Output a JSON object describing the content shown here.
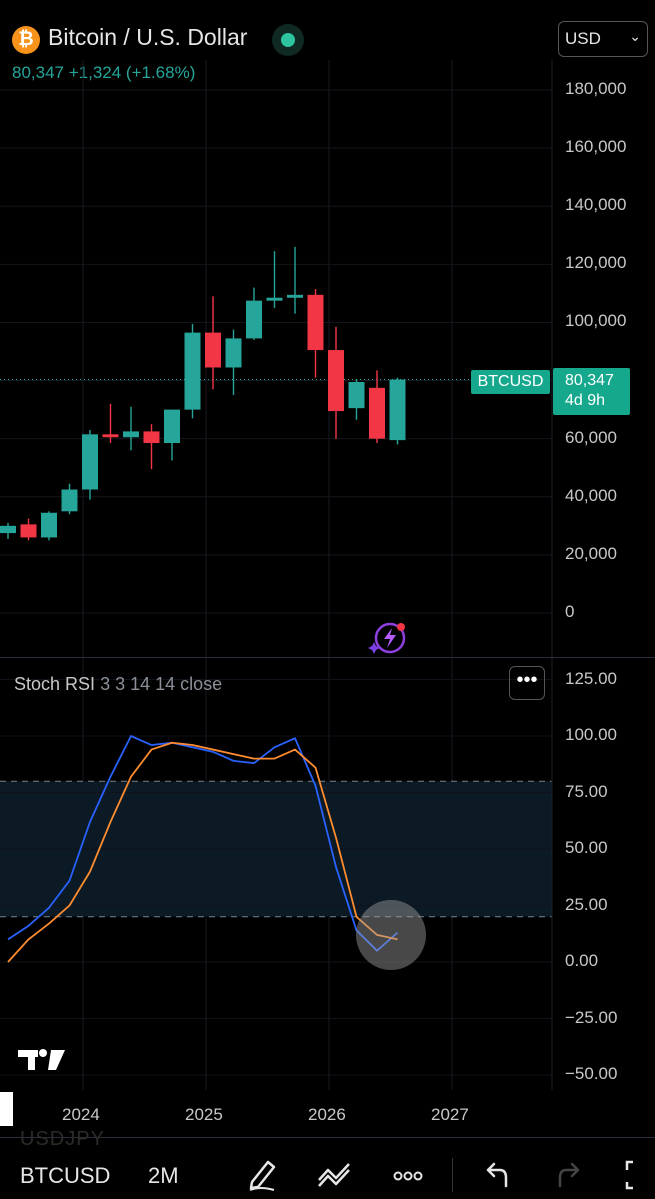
{
  "header": {
    "title": "Bitcoin / U.S. Dollar",
    "icon_glyph": "₿",
    "price_line": "80,347  +1,324 (+1.68%)",
    "currency": "USD",
    "accent": "#26a69a",
    "up_color": "#26a69a",
    "down_color": "#f23645"
  },
  "price_axis": {
    "ticks": [
      "180,000",
      "160,000",
      "140,000",
      "120,000",
      "100,000",
      "60,000",
      "40,000",
      "20,000",
      "0"
    ]
  },
  "price_tag": {
    "symbol": "BTCUSD",
    "price": "80,347",
    "countdown": "4d 9h"
  },
  "indicator": {
    "name": "Stoch RSI",
    "params": "3 3 14 14 close",
    "more_label": "•••",
    "ticks": [
      "125.00",
      "100.00",
      "75.00",
      "50.00",
      "25.00",
      "0.00",
      "−25.00",
      "−50.00"
    ]
  },
  "time_axis": {
    "years": [
      "2024",
      "2025",
      "2026",
      "2027"
    ]
  },
  "chart_data": {
    "type": "candlestick",
    "ylim": [
      0,
      190000
    ],
    "candles": [
      {
        "o": 27500,
        "h": 31000,
        "l": 25500,
        "c": 30000
      },
      {
        "o": 30500,
        "h": 32500,
        "l": 25000,
        "c": 26000
      },
      {
        "o": 26000,
        "h": 35000,
        "l": 25000,
        "c": 34500
      },
      {
        "o": 35000,
        "h": 44500,
        "l": 34000,
        "c": 42500
      },
      {
        "o": 42500,
        "h": 63000,
        "l": 39000,
        "c": 61500
      },
      {
        "o": 61500,
        "h": 72000,
        "l": 58500,
        "c": 60500
      },
      {
        "o": 60500,
        "h": 71000,
        "l": 56000,
        "c": 62500
      },
      {
        "o": 62500,
        "h": 65000,
        "l": 49500,
        "c": 58500
      },
      {
        "o": 58500,
        "h": 70000,
        "l": 52500,
        "c": 70000
      },
      {
        "o": 70000,
        "h": 99500,
        "l": 67000,
        "c": 96500
      },
      {
        "o": 96500,
        "h": 109000,
        "l": 77000,
        "c": 84500
      },
      {
        "o": 84500,
        "h": 97500,
        "l": 75000,
        "c": 94500
      },
      {
        "o": 94500,
        "h": 112000,
        "l": 94000,
        "c": 107500
      },
      {
        "o": 107500,
        "h": 124500,
        "l": 105000,
        "c": 108500
      },
      {
        "o": 108500,
        "h": 126000,
        "l": 103000,
        "c": 109500
      },
      {
        "o": 109500,
        "h": 111500,
        "l": 81000,
        "c": 90500
      },
      {
        "o": 90500,
        "h": 98500,
        "l": 60000,
        "c": 69500
      },
      {
        "o": 70500,
        "h": 80500,
        "l": 66500,
        "c": 79500
      },
      {
        "o": 77500,
        "h": 83500,
        "l": 58500,
        "c": 60000
      },
      {
        "o": 59500,
        "h": 81000,
        "l": 58000,
        "c": 80347
      }
    ],
    "stoch_rsi": {
      "ylim": [
        -60,
        130
      ],
      "levels": [
        80,
        50,
        20
      ],
      "series": [
        {
          "color": "#2962ff",
          "values": [
            10,
            16,
            24,
            36,
            62,
            82,
            100,
            96,
            97,
            95,
            93,
            89,
            88,
            95,
            99,
            78,
            42,
            14,
            5,
            13
          ]
        },
        {
          "color": "#ff8c2f",
          "values": [
            0,
            10,
            17,
            25,
            40,
            62,
            82,
            94,
            97,
            96,
            94,
            92,
            90,
            90,
            94,
            86,
            55,
            20,
            12,
            10
          ]
        }
      ]
    }
  }
}
